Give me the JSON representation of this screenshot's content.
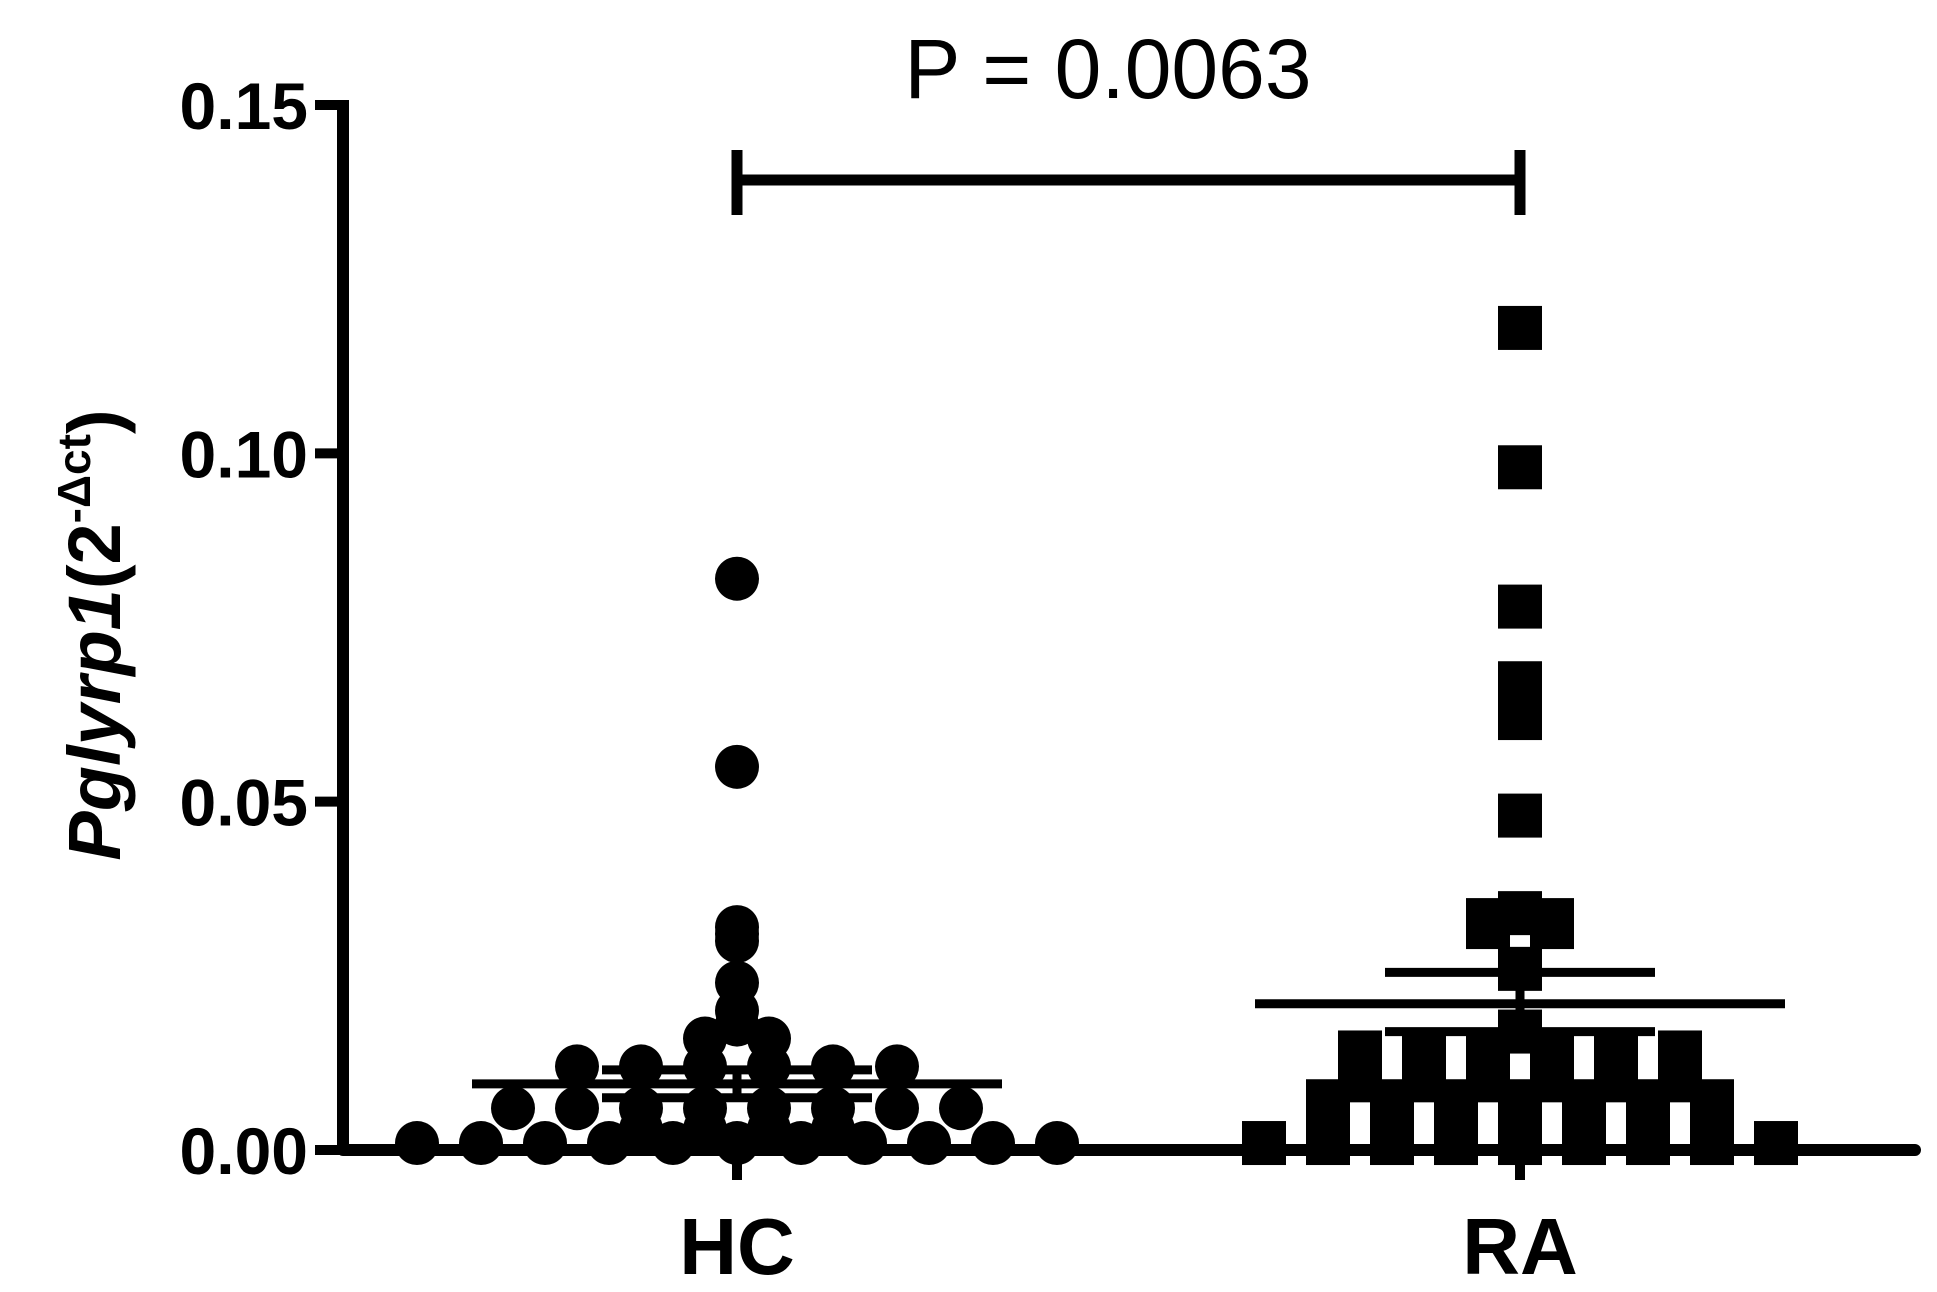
{
  "chart_data": {
    "type": "scatter",
    "ylabel": {
      "gene": "Pglyrp1",
      "open": "(2",
      "sup": "-Δct",
      "close": ")"
    },
    "yticks": [
      "0.00",
      "0.05",
      "0.10",
      "0.15"
    ],
    "ylim": [
      0,
      0.15
    ],
    "categories": [
      "HC",
      "RA"
    ],
    "annotation": "P = 0.0063",
    "grid": false,
    "series": [
      {
        "category": "HC",
        "marker": "circle",
        "mean": 0.0095,
        "sem_upper": 0.0115,
        "sem_lower": 0.0075,
        "points": [
          0.082,
          0.055,
          0.031,
          0.03,
          0.032,
          0.024,
          0.02,
          0.018,
          0.016,
          0.016,
          0.012,
          0.012,
          0.012,
          0.012,
          0.012,
          0.012,
          0.006,
          0.006,
          0.006,
          0.006,
          0.006,
          0.006,
          0.006,
          0.006,
          0.003,
          0.003,
          0.003,
          0.003,
          0.001,
          0.001,
          0.001,
          0.001,
          0.001,
          0.001,
          0.001,
          0.001,
          0.001,
          0.001,
          0.001
        ]
      },
      {
        "category": "RA",
        "marker": "square",
        "mean": 0.021,
        "sem_upper": 0.0255,
        "sem_lower": 0.017,
        "points": [
          0.118,
          0.098,
          0.078,
          0.066,
          0.067,
          0.062,
          0.048,
          0.033,
          0.032,
          0.032,
          0.033,
          0.034,
          0.026,
          0.017,
          0.014,
          0.014,
          0.014,
          0.014,
          0.014,
          0.014,
          0.01,
          0.01,
          0.01,
          0.01,
          0.01,
          0.01,
          0.007,
          0.007,
          0.007,
          0.007,
          0.007,
          0.007,
          0.007,
          0.004,
          0.004,
          0.004,
          0.004,
          0.004,
          0.004,
          0.004,
          0.001,
          0.001,
          0.001,
          0.001,
          0.001,
          0.001,
          0.001,
          0.001,
          0.001
        ]
      }
    ]
  }
}
